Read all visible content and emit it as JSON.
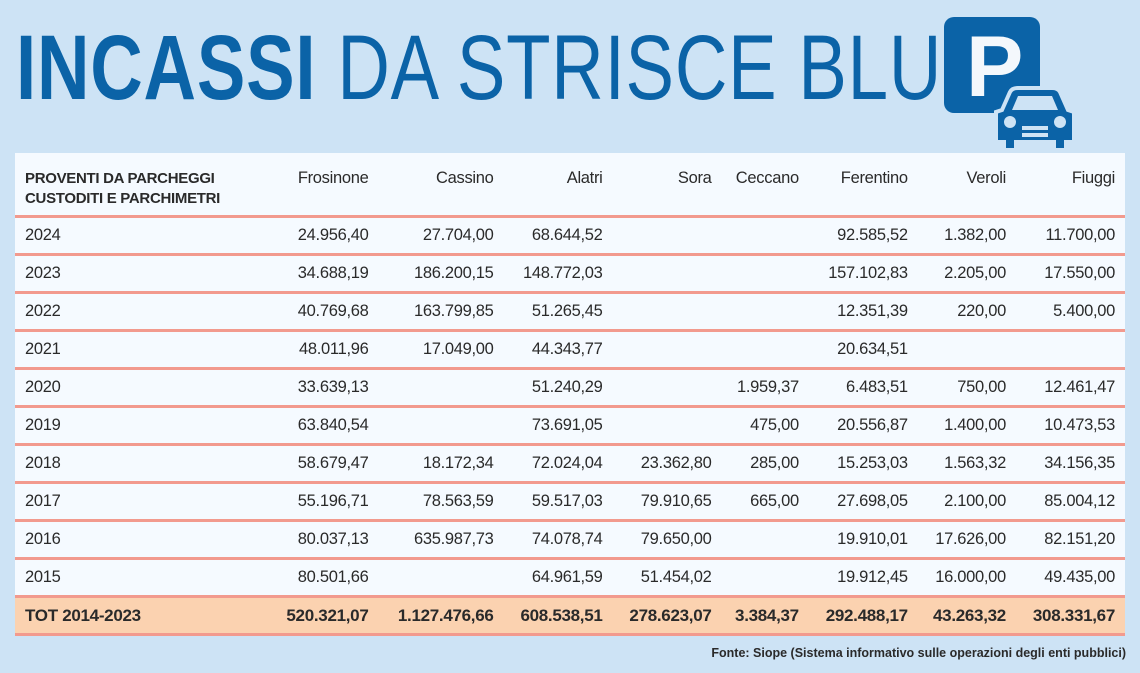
{
  "title": {
    "bold": "INCASSI",
    "light": "DA STRISCE BLU",
    "icon_letter": "P"
  },
  "colors": {
    "brand_blue": "#0b63a7",
    "background": "#cde3f5",
    "row_line": "#f29a8e",
    "total_bg": "#fbd2b0"
  },
  "table": {
    "header_label_line1": "PROVENTI DA PARCHEGGI",
    "header_label_line2": "CUSTODITI E PARCHIMETRI",
    "columns": [
      "Frosinone",
      "Cassino",
      "Alatri",
      "Sora",
      "Ceccano",
      "Ferentino",
      "Veroli",
      "Fiuggi"
    ],
    "rows": [
      {
        "year": "2024",
        "values": [
          "24.956,40",
          "27.704,00",
          "68.644,52",
          "",
          "",
          "92.585,52",
          "1.382,00",
          "11.700,00"
        ]
      },
      {
        "year": "2023",
        "values": [
          "34.688,19",
          "186.200,15",
          "148.772,03",
          "",
          "",
          "157.102,83",
          "2.205,00",
          "17.550,00"
        ]
      },
      {
        "year": "2022",
        "values": [
          "40.769,68",
          "163.799,85",
          "51.265,45",
          "",
          "",
          "12.351,39",
          "220,00",
          "5.400,00"
        ]
      },
      {
        "year": "2021",
        "values": [
          "48.011,96",
          "17.049,00",
          "44.343,77",
          "",
          "",
          "20.634,51",
          "",
          ""
        ]
      },
      {
        "year": "2020",
        "values": [
          "33.639,13",
          "",
          "51.240,29",
          "",
          "1.959,37",
          "6.483,51",
          "750,00",
          "12.461,47"
        ]
      },
      {
        "year": "2019",
        "values": [
          "63.840,54",
          "",
          "73.691,05",
          "",
          "475,00",
          "20.556,87",
          "1.400,00",
          "10.473,53"
        ]
      },
      {
        "year": "2018",
        "values": [
          "58.679,47",
          "18.172,34",
          "72.024,04",
          "23.362,80",
          "285,00",
          "15.253,03",
          "1.563,32",
          "34.156,35"
        ]
      },
      {
        "year": "2017",
        "values": [
          "55.196,71",
          "78.563,59",
          "59.517,03",
          "79.910,65",
          "665,00",
          "27.698,05",
          "2.100,00",
          "85.004,12"
        ]
      },
      {
        "year": "2016",
        "values": [
          "80.037,13",
          "635.987,73",
          "74.078,74",
          "79.650,00",
          "",
          "19.910,01",
          "17.626,00",
          "82.151,20"
        ]
      },
      {
        "year": "2015",
        "values": [
          "80.501,66",
          "",
          "64.961,59",
          "51.454,02",
          "",
          "19.912,45",
          "16.000,00",
          "49.435,00"
        ]
      }
    ],
    "total": {
      "label": "TOT 2014-2023",
      "values": [
        "520.321,07",
        "1.127.476,66",
        "608.538,51",
        "278.623,07",
        "3.384,37",
        "292.488,17",
        "43.263,32",
        "308.331,67"
      ]
    }
  },
  "source": "Fonte: Siope (Sistema informativo sulle operazioni degli enti pubblici)"
}
